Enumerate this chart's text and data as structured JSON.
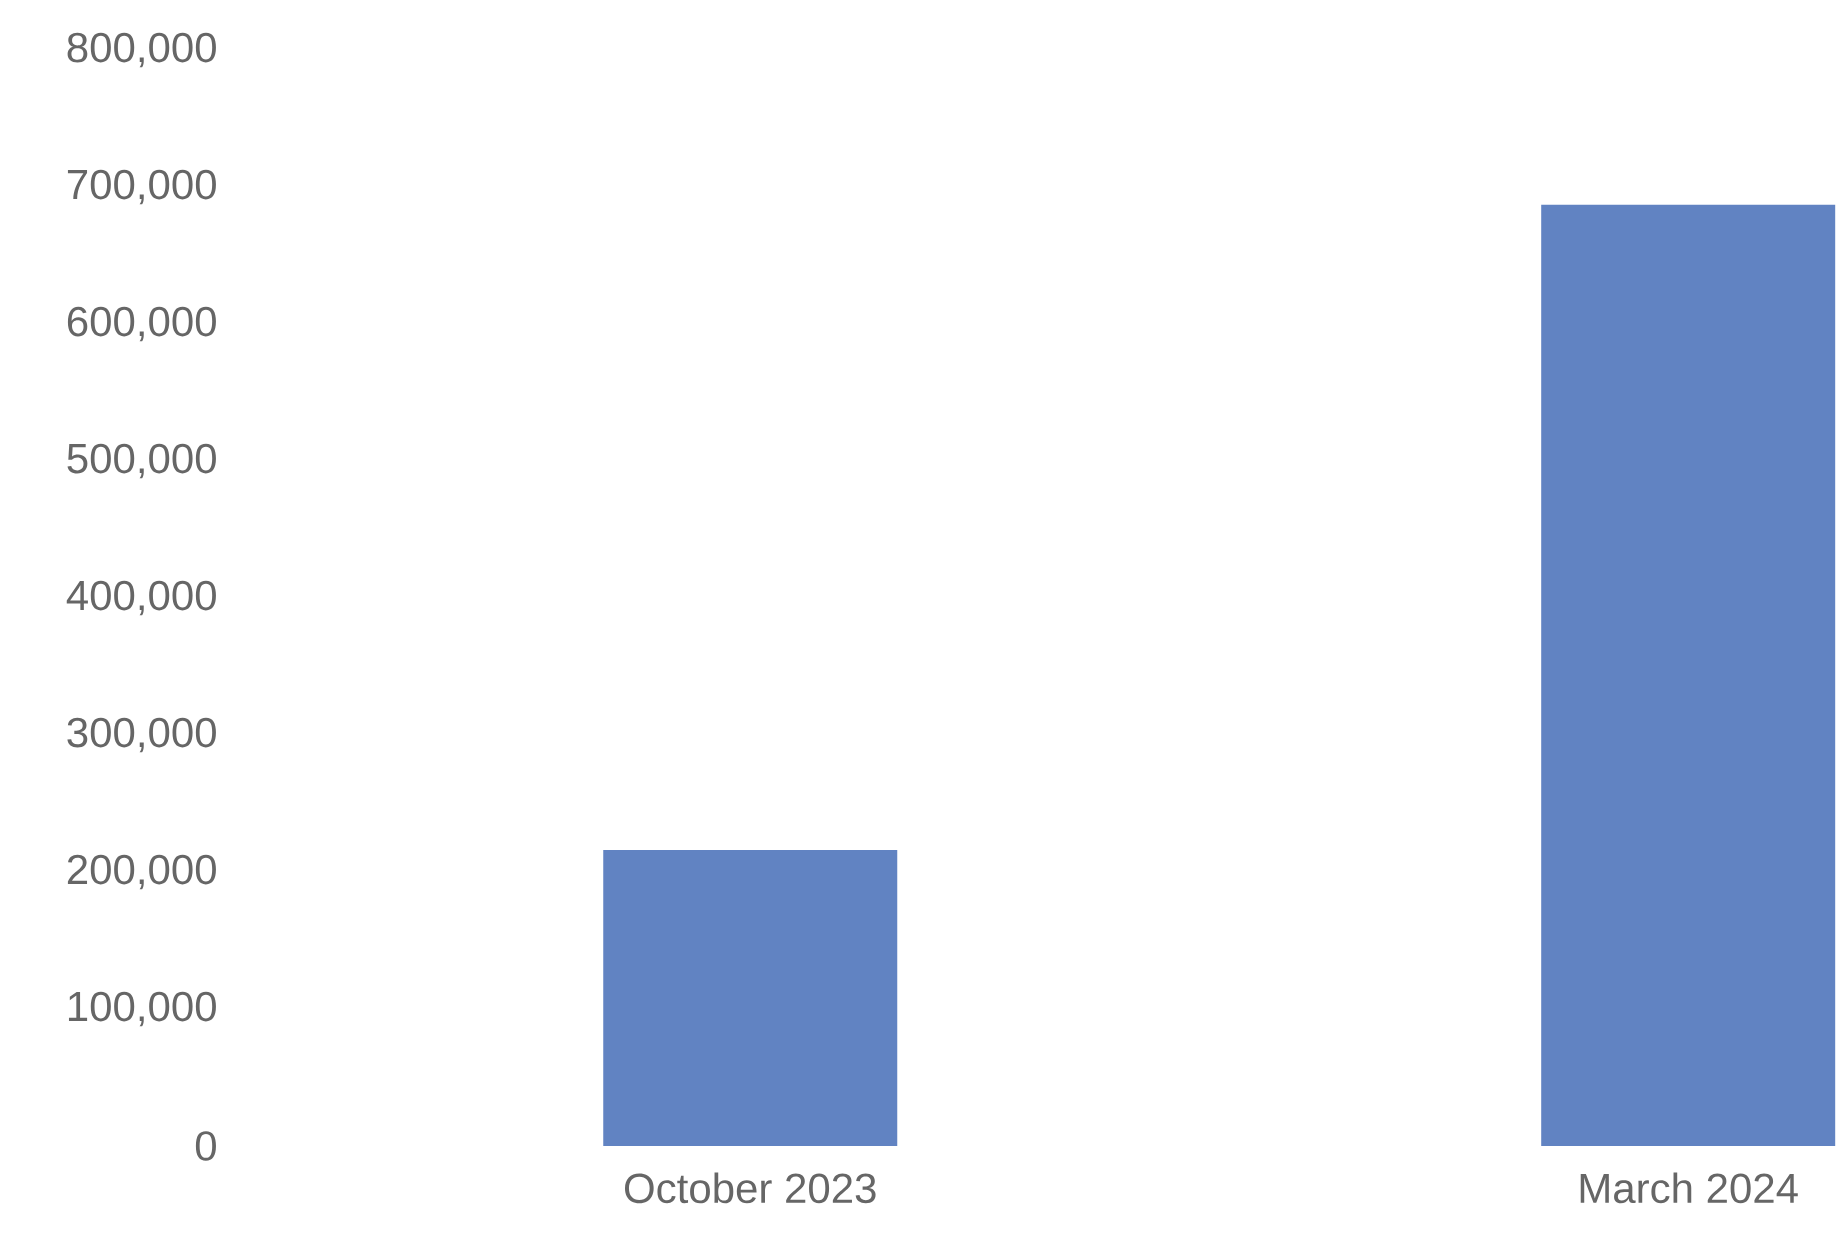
{
  "chart_data": {
    "type": "bar",
    "categories": [
      "October 2023",
      "March 2024"
    ],
    "values": [
      216000,
      687000
    ],
    "color": "#6183c2",
    "ylim": [
      0,
      800000
    ],
    "yticks": [
      0,
      {
        "value": 100000,
        "label": "100,000"
      },
      {
        "value": 200000,
        "label": "200,000"
      },
      {
        "value": 300000,
        "label": "300,000"
      },
      {
        "value": 400000,
        "label": "400,000"
      },
      {
        "value": 500000,
        "label": "500,000"
      },
      {
        "value": 600000,
        "label": "600,000"
      },
      {
        "value": 700000,
        "label": "700,000"
      },
      {
        "value": 800000,
        "label": "800,000"
      }
    ]
  }
}
